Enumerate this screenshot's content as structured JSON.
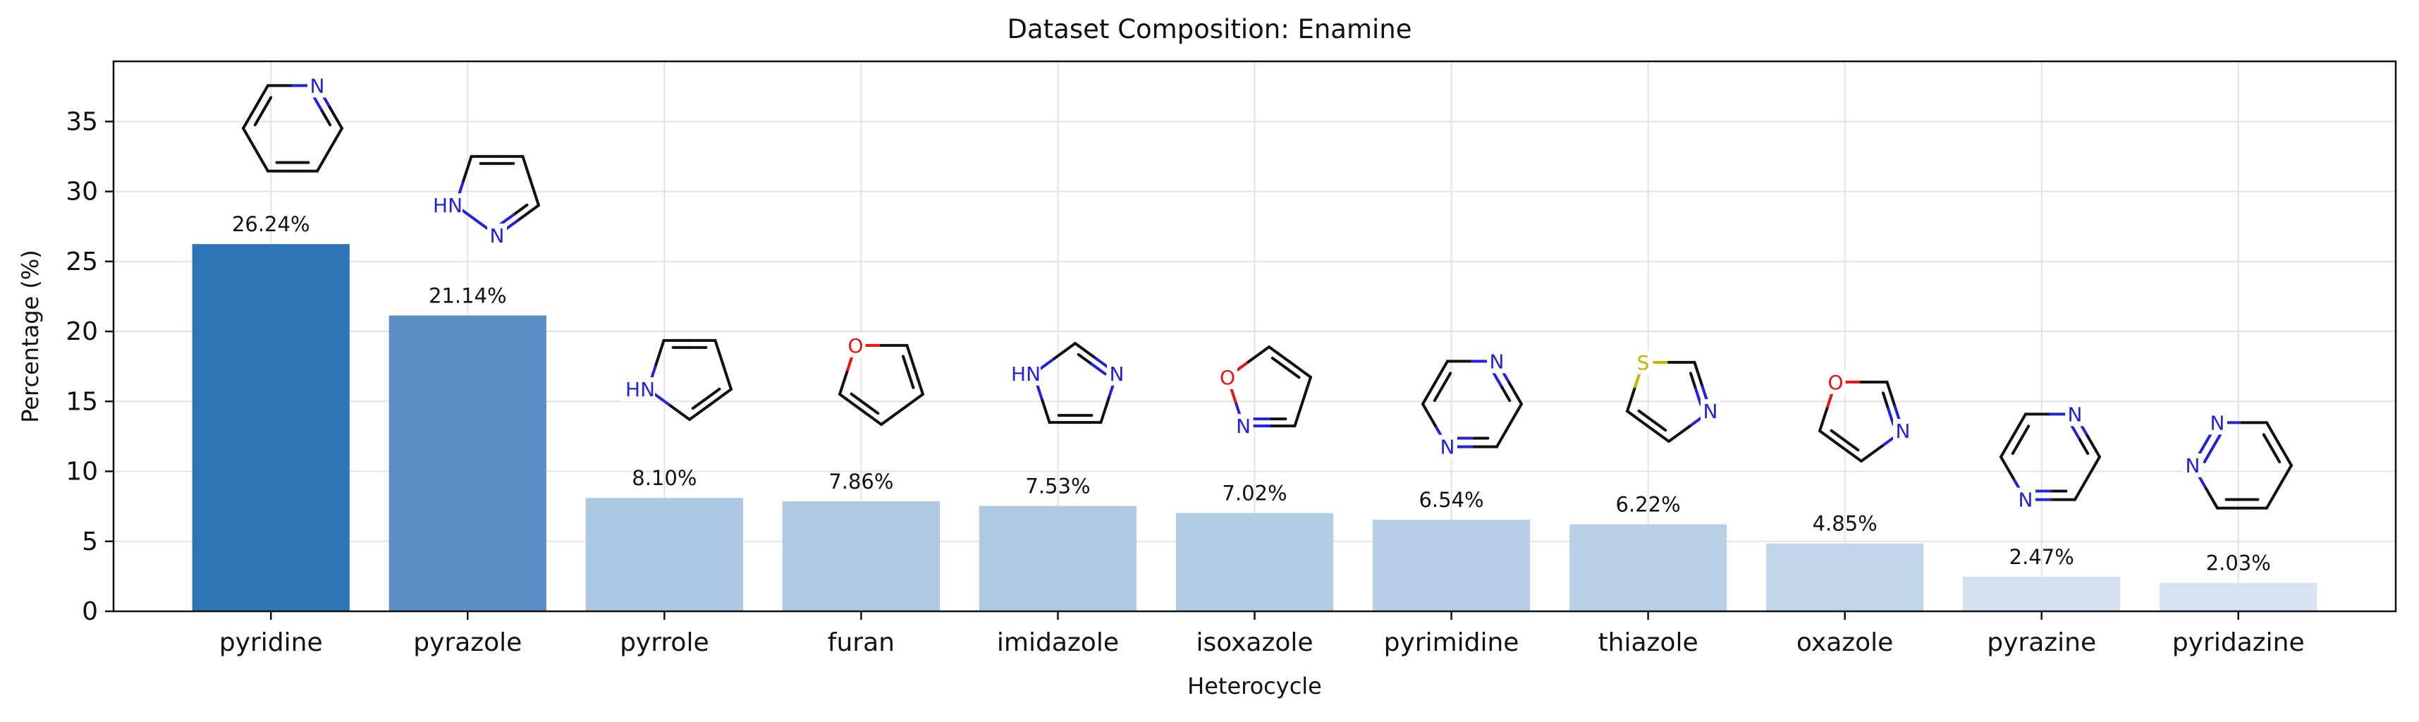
{
  "chart_data": {
    "type": "bar",
    "title": "Dataset Composition: Enamine",
    "xlabel": "Heterocycle",
    "ylabel": "Percentage (%)",
    "categories": [
      "pyridine",
      "pyrazole",
      "pyrrole",
      "furan",
      "imidazole",
      "isoxazole",
      "pyrimidine",
      "thiazole",
      "oxazole",
      "pyrazine",
      "pyridazine"
    ],
    "values": [
      26.24,
      21.14,
      8.1,
      7.86,
      7.53,
      7.02,
      6.54,
      6.22,
      4.85,
      2.47,
      2.03
    ],
    "value_labels": [
      "26.24%",
      "21.14%",
      "8.10%",
      "7.86%",
      "7.53%",
      "7.02%",
      "6.54%",
      "6.22%",
      "4.85%",
      "2.47%",
      "2.03%"
    ],
    "bar_colors": [
      "#2e75b6",
      "#5a8ec5",
      "#adc8e3",
      "#afc9e3",
      "#b0cae4",
      "#b3cce5",
      "#b6cee6",
      "#b9d0e7",
      "#c1d6ea",
      "#d3e1ef",
      "#d6e3f0"
    ],
    "yticks": [
      0,
      5,
      10,
      15,
      20,
      25,
      30,
      35
    ],
    "ylim": [
      0,
      39.3
    ],
    "grid": true,
    "structure_icons": [
      "pyridine",
      "pyrazole",
      "pyrrole",
      "furan",
      "imidazole",
      "isoxazole",
      "pyrimidine",
      "thiazole",
      "oxazole",
      "pyrazine",
      "pyridazine"
    ],
    "atom_labels": {
      "nitrogen": "N",
      "nh": "HN",
      "oxygen": "O",
      "sulfur": "S"
    },
    "atom_colors": {
      "N": "#2222dd",
      "O": "#ee1111",
      "S": "#c8b400",
      "bond": "#111111"
    }
  }
}
